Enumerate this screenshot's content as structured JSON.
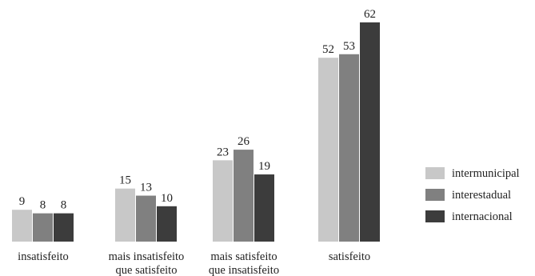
{
  "chart_data": {
    "type": "bar",
    "categories": [
      [
        "insatisfeito"
      ],
      [
        "mais insatisfeito",
        "que satisfeito"
      ],
      [
        "mais satisfeito",
        "que insatisfeito"
      ],
      [
        "satisfeito"
      ]
    ],
    "series": [
      {
        "name": "intermunicipal",
        "values": [
          9,
          15,
          23,
          52
        ]
      },
      {
        "name": "interestadual",
        "values": [
          8,
          13,
          26,
          53
        ]
      },
      {
        "name": "internacional",
        "values": [
          8,
          10,
          19,
          62
        ]
      }
    ],
    "ylim": [
      0,
      62
    ],
    "grid": false,
    "legend": "right",
    "colors": {
      "intermunicipal": "#c8c8c8",
      "interestadual": "#808080",
      "internacional": "#3c3c3c"
    }
  }
}
